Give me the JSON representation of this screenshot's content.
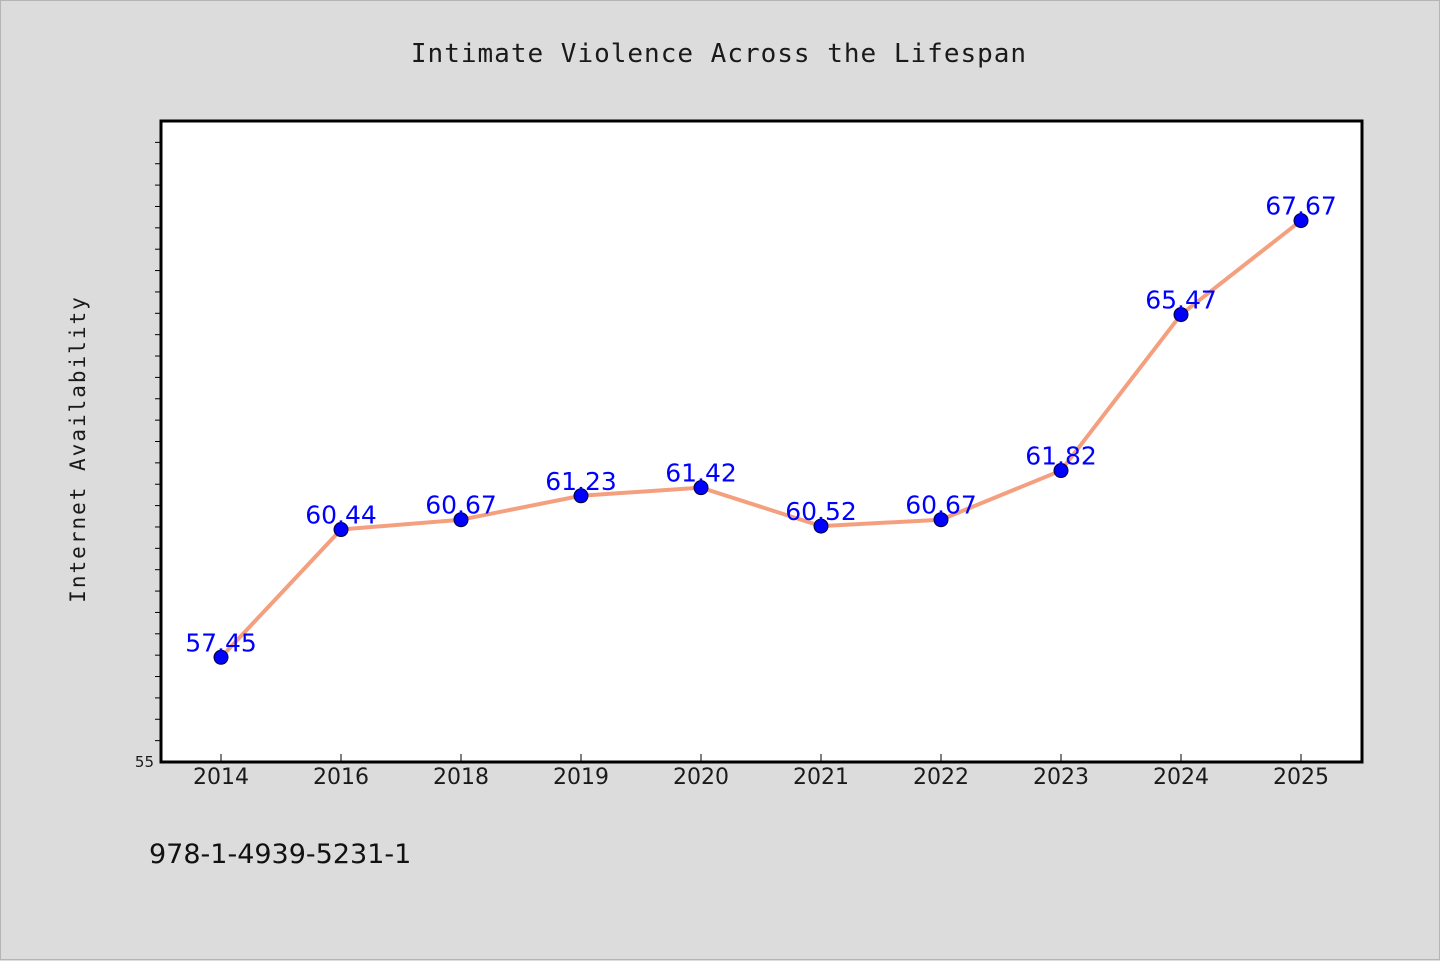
{
  "chart_data": {
    "type": "line",
    "title": "Intimate Violence Across the Lifespan",
    "xlabel": "",
    "ylabel": "Internet Availability",
    "categories": [
      "2014",
      "2016",
      "2018",
      "2019",
      "2020",
      "2021",
      "2022",
      "2023",
      "2024",
      "2025"
    ],
    "values": [
      57.45,
      60.44,
      60.67,
      61.23,
      61.42,
      60.52,
      60.67,
      61.82,
      65.47,
      67.67
    ],
    "data_labels": [
      "57.45",
      "60.44",
      "60.67",
      "61.23",
      "61.42",
      "60.52",
      "60.67",
      "61.82",
      "65.47",
      "67.67"
    ],
    "ylim": [
      55,
      70
    ],
    "y_tick_labels": [
      "55"
    ],
    "grid": false,
    "line_color": "#f4a07f",
    "marker_color": "#0000ff",
    "label_color": "#0000ff"
  },
  "footer": {
    "isbn": "978-1-4939-5231-1"
  }
}
